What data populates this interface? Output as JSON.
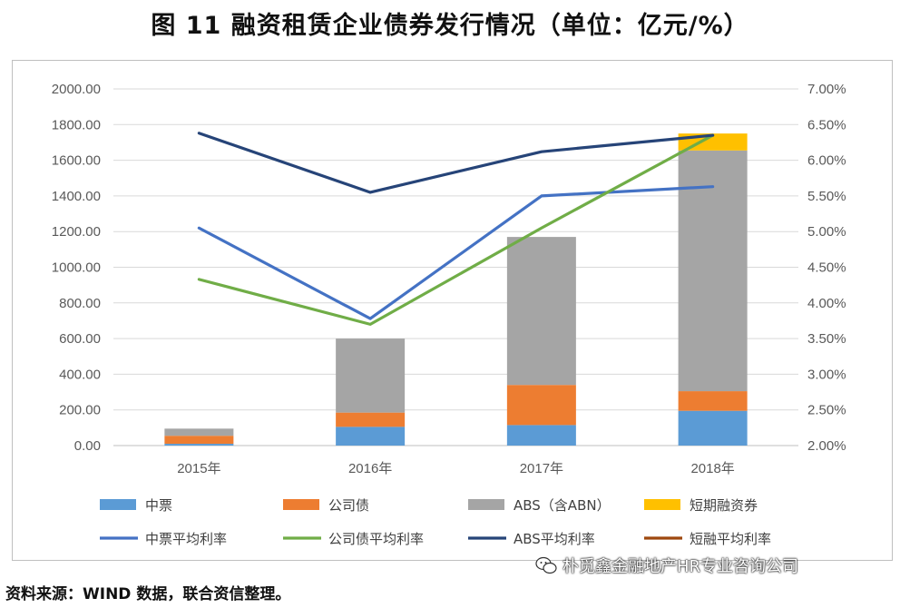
{
  "title": "图 11    融资租赁企业债券发行情况（单位：亿元/%）",
  "source": "资料来源：WIND 数据，联合资信整理。",
  "watermark": "朴觅鑫金融地产HR专业咨询公司",
  "colors": {
    "mtn": "#5b9bd5",
    "corp": "#ed7d31",
    "abs": "#a5a5a5",
    "cp": "#ffc000",
    "mtn_rate": "#4472c4",
    "corp_rate": "#70ad47",
    "abs_rate": "#264478",
    "cp_rate": "#9e480e"
  },
  "chart_data": {
    "type": "bar",
    "stacked": true,
    "title": "融资租赁企业债券发行情况（单位：亿元/%）",
    "categories": [
      "2015年",
      "2016年",
      "2017年",
      "2018年"
    ],
    "ylim": [
      0,
      2000
    ],
    "y_ticks": [
      "0.00",
      "200.00",
      "400.00",
      "600.00",
      "800.00",
      "1000.00",
      "1200.00",
      "1400.00",
      "1600.00",
      "1800.00",
      "2000.00"
    ],
    "y2lim": [
      2.0,
      7.0
    ],
    "y2_ticks": [
      "2.00%",
      "2.50%",
      "3.00%",
      "3.50%",
      "4.00%",
      "4.50%",
      "5.00%",
      "5.50%",
      "6.00%",
      "6.50%",
      "7.00%"
    ],
    "grid": true,
    "legend_position": "bottom",
    "series": [
      {
        "name": "中票",
        "kind": "bar",
        "color_key": "mtn",
        "values": [
          10,
          105,
          115,
          195
        ]
      },
      {
        "name": "公司债",
        "kind": "bar",
        "color_key": "corp",
        "values": [
          45,
          80,
          225,
          110
        ]
      },
      {
        "name": "ABS（含ABN）",
        "kind": "bar",
        "color_key": "abs",
        "values": [
          40,
          415,
          830,
          1350
        ]
      },
      {
        "name": "短期融资券",
        "kind": "bar",
        "color_key": "cp",
        "values": [
          0,
          0,
          0,
          95
        ]
      },
      {
        "name": "中票平均利率",
        "kind": "line",
        "axis": "right",
        "color_key": "mtn_rate",
        "values": [
          5.05,
          3.78,
          5.5,
          5.63
        ]
      },
      {
        "name": "公司债平均利率",
        "kind": "line",
        "axis": "right",
        "color_key": "corp_rate",
        "values": [
          4.33,
          3.7,
          5.05,
          6.35
        ]
      },
      {
        "name": "ABS平均利率",
        "kind": "line",
        "axis": "right",
        "color_key": "abs_rate",
        "values": [
          6.38,
          5.55,
          6.12,
          6.35
        ]
      },
      {
        "name": "短融平均利率",
        "kind": "line",
        "axis": "right",
        "color_key": "cp_rate",
        "values": [
          null,
          null,
          null,
          null
        ]
      }
    ]
  }
}
